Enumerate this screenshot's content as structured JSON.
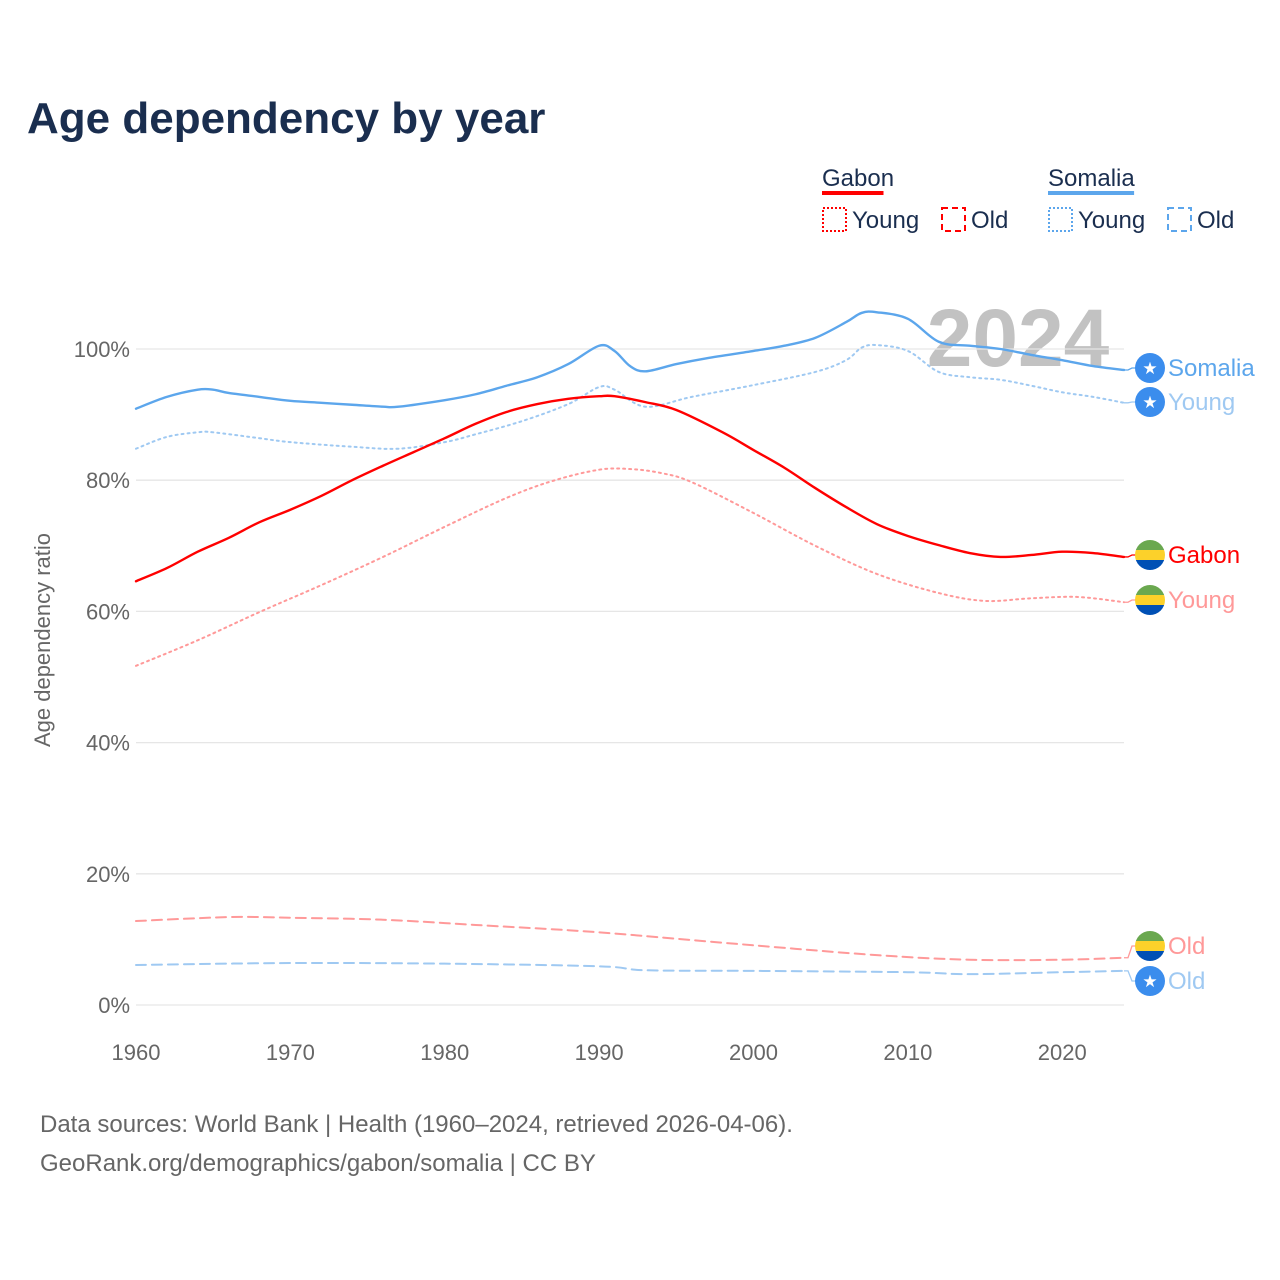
{
  "chart_data": {
    "type": "line",
    "title": "Age dependency by year",
    "xlabel": "",
    "ylabel": "Age dependency ratio",
    "xlim": [
      1960,
      2024
    ],
    "ylim": [
      0,
      100
    ],
    "x_ticks": [
      "1960",
      "1970",
      "1980",
      "1990",
      "2000",
      "2010",
      "2020"
    ],
    "y_ticks": [
      "0%",
      "20%",
      "40%",
      "60%",
      "80%",
      "100%"
    ],
    "y_tick_values": [
      0,
      20,
      40,
      60,
      80,
      100
    ],
    "x_tick_values": [
      1960,
      1970,
      1980,
      1990,
      2000,
      2010,
      2020
    ],
    "grid": true,
    "year_watermark": "2024",
    "legend": {
      "placement": "top-right",
      "groups": [
        {
          "country": "Gabon",
          "color": "#ff0000",
          "items": [
            "Young",
            "Old"
          ]
        },
        {
          "country": "Somalia",
          "color": "#5ca6ec",
          "items": [
            "Young",
            "Old"
          ]
        }
      ]
    },
    "series": [
      {
        "name": "Somalia",
        "label": "Somalia",
        "country": "Somalia",
        "kind": "total",
        "color": "#5ca6ec",
        "dash": "solid",
        "x": [
          1960,
          1962,
          1964,
          1965,
          1966,
          1968,
          1970,
          1972,
          1974,
          1976,
          1977,
          1980,
          1982,
          1984,
          1986,
          1988,
          1990,
          1991,
          1992,
          1993,
          1995,
          1997,
          2000,
          2002,
          2004,
          2006,
          2007,
          2008,
          2010,
          2012,
          2014,
          2016,
          2018,
          2020,
          2022,
          2024
        ],
        "y": [
          90.9,
          92.7,
          93.8,
          93.8,
          93.3,
          92.7,
          92.1,
          91.8,
          91.5,
          91.2,
          91.2,
          92.2,
          93.1,
          94.4,
          95.7,
          97.7,
          100.5,
          99.7,
          97.4,
          96.6,
          97.7,
          98.6,
          99.7,
          100.5,
          101.7,
          104.1,
          105.5,
          105.6,
          104.6,
          101.1,
          100.5,
          100.0,
          99.1,
          98.3,
          97.4,
          96.8
        ]
      },
      {
        "name": "Somalia Young",
        "label": "Young",
        "country": "Somalia",
        "kind": "young",
        "color": "#9fc9f2",
        "dash": "dotted",
        "x": [
          1960,
          1962,
          1964,
          1965,
          1968,
          1970,
          1974,
          1977,
          1980,
          1982,
          1985,
          1988,
          1990,
          1991,
          1993,
          1996,
          2000,
          2004,
          2006,
          2007,
          2008,
          2010,
          2012,
          2014,
          2016,
          2018,
          2020,
          2022,
          2024
        ],
        "y": [
          84.8,
          86.6,
          87.3,
          87.3,
          86.4,
          85.8,
          85.1,
          84.8,
          85.8,
          87.0,
          89.0,
          91.6,
          94.2,
          93.8,
          91.2,
          92.7,
          94.5,
          96.5,
          98.3,
          100.2,
          100.6,
          99.7,
          96.5,
          95.7,
          95.3,
          94.4,
          93.4,
          92.7,
          91.8
        ]
      },
      {
        "name": "Gabon",
        "label": "Gabon",
        "country": "Gabon",
        "kind": "total",
        "color": "#ff0000",
        "dash": "solid",
        "x": [
          1960,
          1962,
          1964,
          1966,
          1968,
          1970,
          1972,
          1974,
          1976,
          1978,
          1980,
          1982,
          1984,
          1986,
          1988,
          1990,
          1991,
          1993,
          1995,
          1998,
          2000,
          2002,
          2004,
          2006,
          2008,
          2010,
          2012,
          2014,
          2016,
          2018,
          2020,
          2022,
          2024
        ],
        "y": [
          64.6,
          66.6,
          69.1,
          71.2,
          73.6,
          75.5,
          77.6,
          80.0,
          82.2,
          84.3,
          86.4,
          88.6,
          90.4,
          91.6,
          92.4,
          92.8,
          92.8,
          91.9,
          90.7,
          87.3,
          84.6,
          81.9,
          78.8,
          75.9,
          73.3,
          71.5,
          70.1,
          68.9,
          68.3,
          68.6,
          69.1,
          68.9,
          68.3
        ]
      },
      {
        "name": "Gabon Young",
        "label": "Young",
        "country": "Gabon",
        "kind": "young",
        "color": "#ff9999",
        "dash": "dotted",
        "x": [
          1960,
          1964,
          1968,
          1972,
          1976,
          1980,
          1984,
          1987,
          1990,
          1992,
          1994,
          1996,
          2000,
          2004,
          2008,
          2012,
          2015,
          2018,
          2021,
          2024
        ],
        "y": [
          51.7,
          55.6,
          59.9,
          64.0,
          68.3,
          72.9,
          77.3,
          79.9,
          81.6,
          81.7,
          81.1,
          79.7,
          75.0,
          70.0,
          65.7,
          62.8,
          61.6,
          62.0,
          62.2,
          61.4
        ]
      },
      {
        "name": "Gabon Old",
        "label": "Old",
        "country": "Gabon",
        "kind": "old",
        "color": "#ff9999",
        "dash": "dashed",
        "x": [
          1960,
          1966,
          1970,
          1976,
          1982,
          1988,
          1992,
          2000,
          2008,
          2014,
          2020,
          2024
        ],
        "y": [
          12.8,
          13.4,
          13.3,
          13.0,
          12.2,
          11.4,
          10.7,
          9.1,
          7.6,
          6.9,
          6.9,
          7.2
        ]
      },
      {
        "name": "Somalia Old",
        "label": "Old",
        "country": "Somalia",
        "kind": "old",
        "color": "#9fc9f2",
        "dash": "dashed",
        "x": [
          1960,
          1970,
          1980,
          1990,
          1993,
          2000,
          2010,
          2014,
          2020,
          2024
        ],
        "y": [
          6.1,
          6.4,
          6.3,
          5.9,
          5.3,
          5.2,
          5.0,
          4.7,
          5.0,
          5.2
        ]
      }
    ]
  },
  "footer": {
    "line1": "Data sources: World Bank | Health (1960–2024, retrieved 2026-04-06).",
    "line2": "GeoRank.org/demographics/gabon/somalia | CC BY"
  }
}
